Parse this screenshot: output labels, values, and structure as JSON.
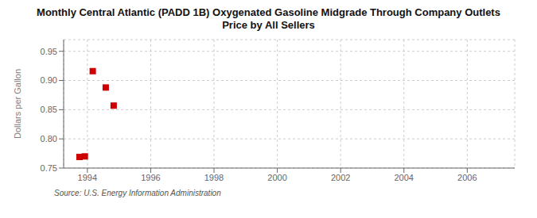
{
  "chart_data": {
    "type": "scatter",
    "title": "Monthly Central Atlantic (PADD 1B) Oxygenated Gasoline Midgrade Through Company Outlets\nPrice by All Sellers",
    "ylabel": "Dollars per Gallon",
    "annotation": "Source: U.S. Energy Information Administration",
    "x": [
      1993.75,
      1993.92,
      1994.17,
      1994.58,
      1994.83
    ],
    "values": [
      0.769,
      0.77,
      0.916,
      0.888,
      0.857
    ],
    "color": "#cc0000",
    "marker": "square",
    "xlim": [
      1993.25,
      2007.5
    ],
    "ylim": [
      0.75,
      0.97
    ],
    "xticks": [
      1994,
      1996,
      1998,
      2000,
      2002,
      2004,
      2006
    ],
    "yticks": [
      0.75,
      {
        "value": 0.8,
        "label": "0.80"
      },
      0.85,
      {
        "value": 0.9,
        "label": "0.90"
      },
      0.95
    ],
    "grid": true
  }
}
